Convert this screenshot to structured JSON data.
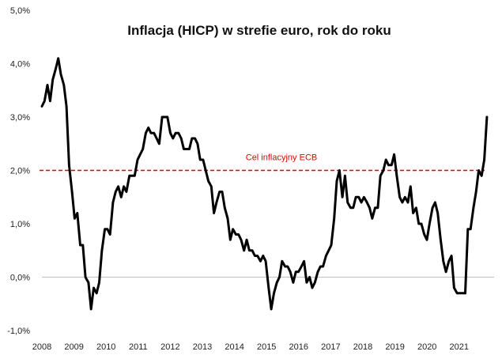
{
  "chart_data": {
    "type": "line",
    "title": "Inflacja (HICP) w strefie euro, rok do roku",
    "xlabel": "",
    "ylabel": "",
    "xlim": [
      2008,
      2021.8
    ],
    "ylim": [
      -1.0,
      5.0
    ],
    "y_ticks": [
      5.0,
      4.0,
      3.0,
      2.0,
      1.0,
      0.0,
      -1.0
    ],
    "y_tick_labels": [
      "5,0%",
      "4,0%",
      "3,0%",
      "2,0%",
      "1,0%",
      "0,0%",
      "-1,0%"
    ],
    "x_ticks": [
      2008,
      2009,
      2010,
      2011,
      2012,
      2013,
      2014,
      2015,
      2016,
      2017,
      2018,
      2019,
      2020,
      2021
    ],
    "x_tick_labels": [
      "2008",
      "2009",
      "2010",
      "2011",
      "2012",
      "2013",
      "2014",
      "2015",
      "2016",
      "2017",
      "2018",
      "2019",
      "2020",
      "2021"
    ],
    "grid": false,
    "line_color": "#000000",
    "target_color": "#e60000",
    "target": {
      "value": 2.0,
      "label": "Cel inflacyjny ECB"
    },
    "series": [
      {
        "name": "HICP r/r",
        "x": [
          2008.0,
          2008.08,
          2008.17,
          2008.25,
          2008.33,
          2008.42,
          2008.5,
          2008.58,
          2008.67,
          2008.75,
          2008.83,
          2008.92,
          2009.0,
          2009.08,
          2009.17,
          2009.25,
          2009.33,
          2009.42,
          2009.5,
          2009.58,
          2009.67,
          2009.75,
          2009.83,
          2009.92,
          2010.0,
          2010.08,
          2010.17,
          2010.25,
          2010.33,
          2010.42,
          2010.5,
          2010.58,
          2010.67,
          2010.75,
          2010.83,
          2010.92,
          2011.0,
          2011.08,
          2011.17,
          2011.25,
          2011.33,
          2011.42,
          2011.5,
          2011.58,
          2011.67,
          2011.75,
          2011.83,
          2011.92,
          2012.0,
          2012.08,
          2012.17,
          2012.25,
          2012.33,
          2012.42,
          2012.5,
          2012.58,
          2012.67,
          2012.75,
          2012.83,
          2012.92,
          2013.0,
          2013.08,
          2013.17,
          2013.25,
          2013.33,
          2013.42,
          2013.5,
          2013.58,
          2013.67,
          2013.75,
          2013.83,
          2013.92,
          2014.0,
          2014.08,
          2014.17,
          2014.25,
          2014.33,
          2014.42,
          2014.5,
          2014.58,
          2014.67,
          2014.75,
          2014.83,
          2014.92,
          2015.0,
          2015.08,
          2015.17,
          2015.25,
          2015.33,
          2015.42,
          2015.5,
          2015.58,
          2015.67,
          2015.75,
          2015.83,
          2015.92,
          2016.0,
          2016.08,
          2016.17,
          2016.25,
          2016.33,
          2016.42,
          2016.5,
          2016.58,
          2016.67,
          2016.75,
          2016.83,
          2016.92,
          2017.0,
          2017.08,
          2017.17,
          2017.25,
          2017.33,
          2017.42,
          2017.5,
          2017.58,
          2017.67,
          2017.75,
          2017.83,
          2017.92,
          2018.0,
          2018.08,
          2018.17,
          2018.25,
          2018.33,
          2018.42,
          2018.5,
          2018.58,
          2018.67,
          2018.75,
          2018.83,
          2018.92,
          2019.0,
          2019.08,
          2019.17,
          2019.25,
          2019.33,
          2019.42,
          2019.5,
          2019.58,
          2019.67,
          2019.75,
          2019.83,
          2019.92,
          2020.0,
          2020.08,
          2020.17,
          2020.25,
          2020.33,
          2020.42,
          2020.5,
          2020.58,
          2020.67,
          2020.75,
          2020.83,
          2020.92,
          2021.0,
          2021.08,
          2021.17,
          2021.25,
          2021.33,
          2021.42,
          2021.5,
          2021.58
        ],
        "values": [
          3.2,
          3.3,
          3.6,
          3.3,
          3.7,
          3.9,
          4.1,
          3.8,
          3.6,
          3.2,
          2.1,
          1.6,
          1.1,
          1.2,
          0.6,
          0.6,
          0.0,
          -0.1,
          -0.6,
          -0.2,
          -0.3,
          -0.1,
          0.5,
          0.9,
          0.9,
          0.8,
          1.4,
          1.6,
          1.7,
          1.5,
          1.7,
          1.6,
          1.9,
          1.9,
          1.9,
          2.2,
          2.3,
          2.4,
          2.7,
          2.8,
          2.7,
          2.7,
          2.6,
          2.5,
          3.0,
          3.0,
          3.0,
          2.7,
          2.6,
          2.7,
          2.7,
          2.6,
          2.4,
          2.4,
          2.4,
          2.6,
          2.6,
          2.5,
          2.2,
          2.2,
          2.0,
          1.8,
          1.7,
          1.2,
          1.4,
          1.6,
          1.6,
          1.3,
          1.1,
          0.7,
          0.9,
          0.8,
          0.8,
          0.7,
          0.5,
          0.7,
          0.5,
          0.5,
          0.4,
          0.4,
          0.3,
          0.4,
          0.3,
          -0.2,
          -0.6,
          -0.3,
          -0.1,
          0.0,
          0.3,
          0.2,
          0.2,
          0.1,
          -0.1,
          0.1,
          0.1,
          0.2,
          0.3,
          -0.1,
          0.0,
          -0.2,
          -0.1,
          0.1,
          0.2,
          0.2,
          0.4,
          0.5,
          0.6,
          1.1,
          1.8,
          2.0,
          1.5,
          1.9,
          1.4,
          1.3,
          1.3,
          1.5,
          1.5,
          1.4,
          1.5,
          1.4,
          1.3,
          1.1,
          1.3,
          1.3,
          1.9,
          2.0,
          2.2,
          2.1,
          2.1,
          2.3,
          1.9,
          1.5,
          1.4,
          1.5,
          1.4,
          1.7,
          1.2,
          1.3,
          1.0,
          1.0,
          0.8,
          0.7,
          1.0,
          1.3,
          1.4,
          1.2,
          0.7,
          0.3,
          0.1,
          0.3,
          0.4,
          -0.2,
          -0.3,
          -0.3,
          -0.3,
          -0.3,
          0.9,
          0.9,
          1.3,
          1.6,
          2.0,
          1.9,
          2.2,
          3.0
        ]
      }
    ]
  }
}
